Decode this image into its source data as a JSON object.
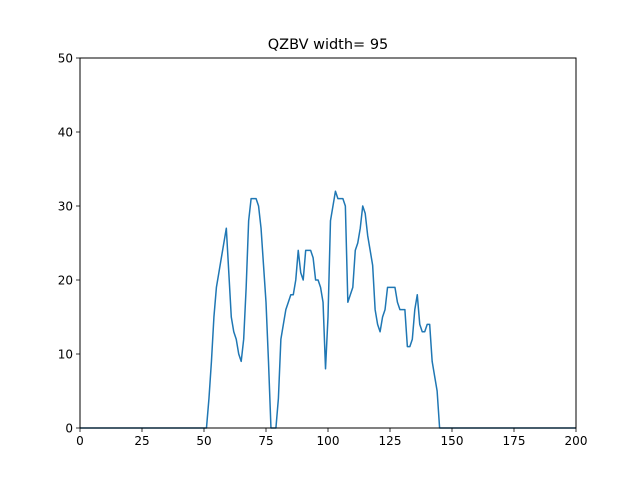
{
  "chart_data": {
    "type": "line",
    "title": "QZBV width= 95",
    "xlabel": "",
    "ylabel": "",
    "xlim": [
      0,
      200
    ],
    "ylim": [
      0,
      50
    ],
    "xticks": [
      0,
      25,
      50,
      75,
      100,
      125,
      150,
      175,
      200
    ],
    "yticks": [
      0,
      10,
      20,
      30,
      40,
      50
    ],
    "grid": false,
    "line_color": "#1f77b4",
    "series": [
      {
        "x": [
          0,
          51,
          52,
          53,
          54,
          55,
          56,
          57,
          58,
          59,
          60,
          61,
          62,
          63,
          64,
          65,
          66,
          67,
          68,
          69,
          70,
          71,
          72,
          73,
          74,
          75,
          76,
          77,
          78,
          79,
          80,
          81,
          82,
          83,
          84,
          85,
          86,
          87,
          88,
          89,
          90,
          91,
          92,
          93,
          94,
          95,
          96,
          97,
          98,
          99,
          100,
          101,
          102,
          103,
          104,
          105,
          106,
          107,
          108,
          109,
          110,
          111,
          112,
          113,
          114,
          115,
          116,
          117,
          118,
          119,
          120,
          121,
          122,
          123,
          124,
          125,
          126,
          127,
          128,
          129,
          130,
          131,
          132,
          133,
          134,
          135,
          136,
          137,
          138,
          139,
          140,
          141,
          142,
          143,
          144,
          145,
          146,
          147,
          200
        ],
        "y": [
          0,
          0,
          4,
          9,
          15,
          19,
          21,
          23,
          25,
          27,
          21,
          15,
          13,
          12,
          10,
          9,
          12,
          19,
          28,
          31,
          31,
          31,
          30,
          27,
          22,
          17,
          9,
          0,
          0,
          0,
          4,
          12,
          14,
          16,
          17,
          18,
          18,
          20,
          24,
          21,
          20,
          24,
          24,
          24,
          23,
          20,
          20,
          19,
          17,
          8,
          15,
          28,
          30,
          32,
          31,
          31,
          31,
          30,
          17,
          18,
          19,
          24,
          25,
          27,
          30,
          29,
          26,
          24,
          22,
          16,
          14,
          13,
          15,
          16,
          19,
          19,
          19,
          19,
          17,
          16,
          16,
          16,
          11,
          11,
          12,
          16,
          18,
          14,
          13,
          13,
          14,
          14,
          9,
          7,
          5,
          0,
          0,
          0,
          0
        ]
      }
    ]
  }
}
